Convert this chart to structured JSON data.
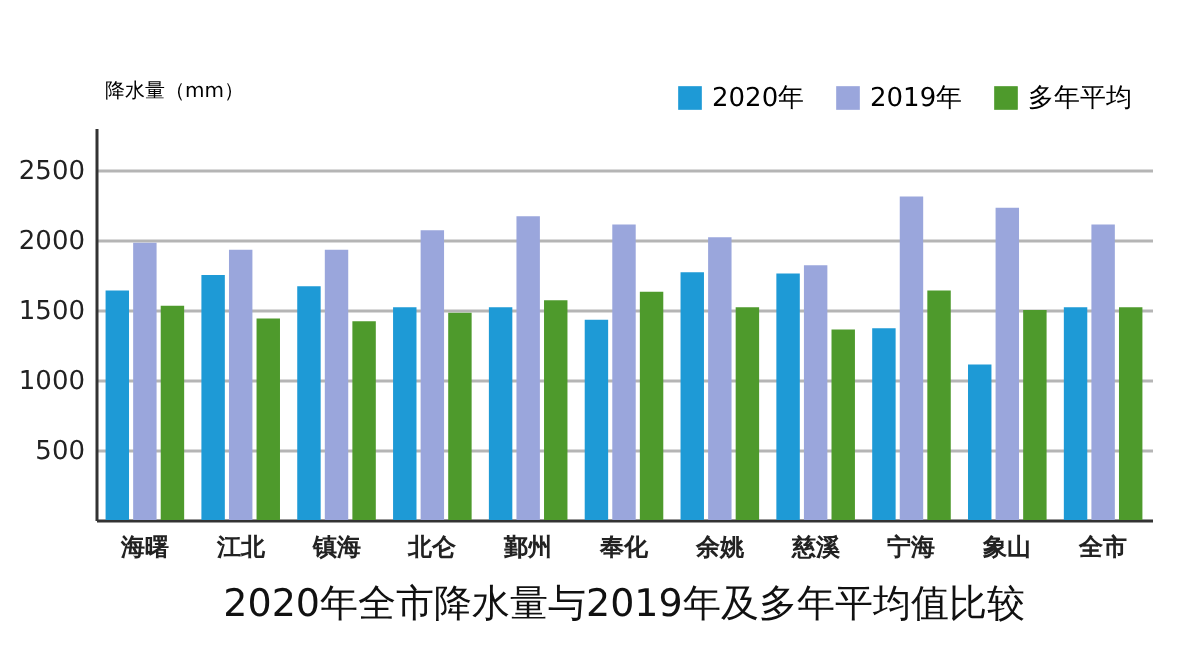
{
  "chart_data": {
    "type": "bar",
    "title": "2020年全市降水量与2019年及多年平均值比较",
    "ylabel": "降水量（mm）",
    "categories": [
      "海曙",
      "江北",
      "镇海",
      "北仑",
      "鄞州",
      "奉化",
      "余姚",
      "慈溪",
      "宁海",
      "象山",
      "全市"
    ],
    "series": [
      {
        "name": "2020年",
        "color": "#1e9ad6",
        "values": [
          1640,
          1750,
          1670,
          1520,
          1520,
          1430,
          1770,
          1760,
          1370,
          1110,
          1520
        ]
      },
      {
        "name": "2019年",
        "color": "#9aa6dc",
        "values": [
          1980,
          1930,
          1930,
          2070,
          2170,
          2110,
          2020,
          1820,
          2310,
          2230,
          2110
        ]
      },
      {
        "name": "多年平均",
        "color": "#4e9a2c",
        "values": [
          1530,
          1440,
          1420,
          1480,
          1570,
          1630,
          1520,
          1360,
          1640,
          1500,
          1520
        ]
      }
    ],
    "ylim": [
      0,
      2800
    ],
    "yticks": [
      500,
      1000,
      1500,
      2000,
      2500
    ],
    "grid": "y",
    "legend": "top right"
  }
}
